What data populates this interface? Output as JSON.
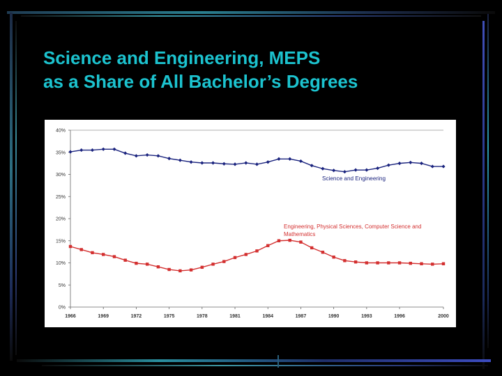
{
  "slide": {
    "title_line1": "Science and Engineering, MEPS",
    "title_line2": "as a Share of All Bachelor’s Degrees",
    "title_color": "#1cc3cf"
  },
  "chart_data": {
    "type": "line",
    "title": "",
    "xlabel": "",
    "ylabel": "",
    "ylim": [
      0,
      40
    ],
    "xlim": [
      1966,
      2000
    ],
    "y_ticks": [
      "0%",
      "5%",
      "10%",
      "15%",
      "20%",
      "25%",
      "30%",
      "35%",
      "40%"
    ],
    "x_ticks": [
      "1966",
      "1969",
      "1972",
      "1975",
      "1978",
      "1981",
      "1984",
      "1987",
      "1990",
      "1993",
      "1996",
      "2000"
    ],
    "grid": "horizontal-top-only",
    "series": [
      {
        "name": "Science and Engineering",
        "color": "#1a237e",
        "marker": "diamond",
        "x": [
          1966,
          1967,
          1968,
          1969,
          1970,
          1971,
          1972,
          1973,
          1974,
          1975,
          1976,
          1977,
          1978,
          1979,
          1980,
          1981,
          1982,
          1983,
          1984,
          1985,
          1986,
          1987,
          1988,
          1989,
          1990,
          1991,
          1992,
          1993,
          1994,
          1995,
          1996,
          1997,
          1998,
          1999,
          2000
        ],
        "values": [
          35.1,
          35.5,
          35.5,
          35.7,
          35.7,
          34.8,
          34.2,
          34.4,
          34.2,
          33.6,
          33.2,
          32.8,
          32.6,
          32.6,
          32.4,
          32.3,
          32.6,
          32.3,
          32.8,
          33.5,
          33.5,
          33.0,
          32.0,
          31.3,
          30.9,
          30.6,
          31.0,
          31.0,
          31.4,
          32.1,
          32.5,
          32.7,
          32.5,
          31.8,
          31.8
        ]
      },
      {
        "name": "Engineering, Physical Sciences, Computer Science and Mathematics",
        "label_lines": [
          "Engineering, Physical Sciences, Computer Science and",
          "Mathematics"
        ],
        "color": "#d32f2f",
        "marker": "square",
        "x": [
          1966,
          1967,
          1968,
          1969,
          1970,
          1971,
          1972,
          1973,
          1974,
          1975,
          1976,
          1977,
          1978,
          1979,
          1980,
          1981,
          1982,
          1983,
          1984,
          1985,
          1986,
          1987,
          1988,
          1989,
          1990,
          1991,
          1992,
          1993,
          1994,
          1995,
          1996,
          1997,
          1998,
          1999,
          2000
        ],
        "values": [
          13.7,
          13.0,
          12.3,
          11.9,
          11.4,
          10.6,
          9.9,
          9.7,
          9.1,
          8.5,
          8.2,
          8.4,
          9.0,
          9.7,
          10.3,
          11.2,
          11.9,
          12.7,
          13.9,
          15.0,
          15.1,
          14.7,
          13.4,
          12.4,
          11.3,
          10.5,
          10.2,
          10.0,
          10.0,
          10.0,
          10.0,
          9.9,
          9.8,
          9.7,
          9.8
        ]
      }
    ]
  }
}
